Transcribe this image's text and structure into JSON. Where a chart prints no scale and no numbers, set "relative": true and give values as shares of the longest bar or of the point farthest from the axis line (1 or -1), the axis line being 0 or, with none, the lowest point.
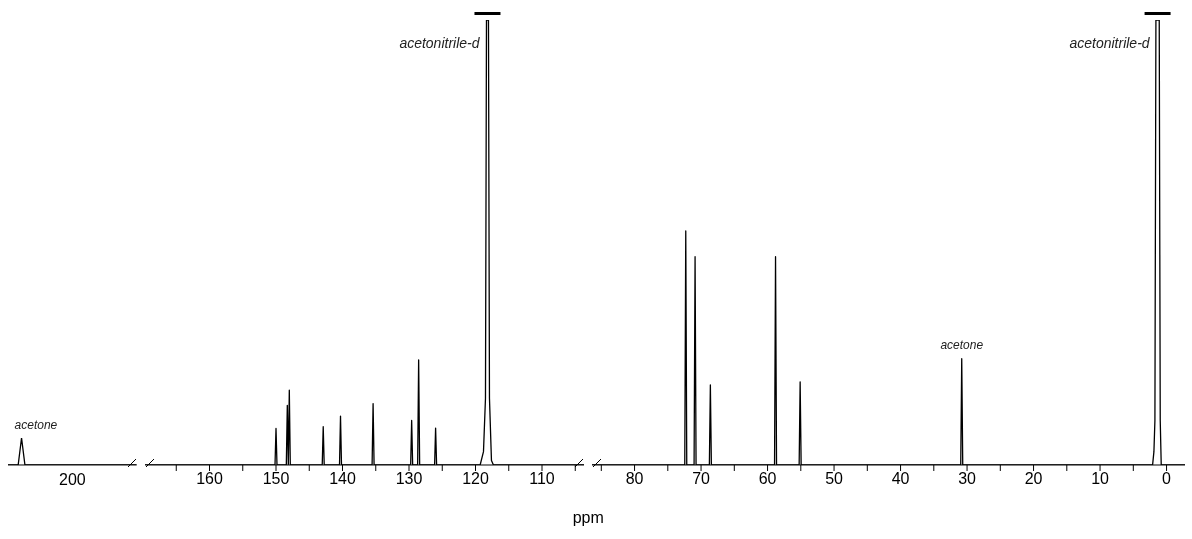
{
  "chart_data": [
    {
      "type": "line",
      "relative": true,
      "categories": [
        null,
        null,
        null,
        null,
        null,
        null,
        null,
        null,
        null,
        null,
        null,
        null,
        null,
        null,
        null,
        null,
        null,
        null,
        null,
        null,
        null,
        null,
        null,
        null,
        null,
        null,
        null,
        null,
        null,
        null,
        null,
        null,
        null,
        null,
        null,
        null,
        null,
        null,
        null
      ],
      "series": [
        {
          "color": "#000000",
          "values": [
            0,
            0,
            0,
            0,
            1,
            0,
            0,
            0,
            0,
            0,
            0,
            0,
            0,
            0,
            0,
            0,
            0,
            0,
            0,
            0,
            0,
            0,
            0,
            0,
            0,
            0,
            0,
            0,
            0,
            0,
            0,
            0,
            0,
            0,
            0,
            0,
            0,
            0,
            0
          ]
        }
      ],
      "annotations": [
        "acetone",
        "200"
      ]
    },
    {
      "type": "line",
      "relative": true,
      "xlabel": "ppm",
      "xlim": [
        169.7,
        103.6
      ],
      "xticks": [
        {
          "value": 165,
          "label": null
        },
        160,
        {
          "value": 155,
          "label": null
        },
        150,
        {
          "value": 145,
          "label": null
        },
        140,
        {
          "value": 135,
          "label": null
        },
        130,
        {
          "value": 125,
          "label": null
        },
        120,
        {
          "value": 115,
          "label": null
        },
        110,
        {
          "value": 105,
          "label": null
        }
      ],
      "x": [
        169.7,
        150.15,
        150.0,
        149.85,
        148.45,
        148.3,
        148.15,
        148.0,
        147.85,
        143.05,
        142.9,
        142.75,
        140.45,
        140.3,
        140.15,
        135.55,
        135.4,
        135.25,
        129.75,
        129.6,
        129.45,
        128.7,
        128.55,
        128.4,
        126.15,
        126.0,
        125.85,
        119.3,
        118.8,
        118.5,
        118.35,
        118.05,
        117.9,
        117.6,
        117.3,
        103.6
      ],
      "series": [
        {
          "color": "#000000",
          "values": [
            0,
            0,
            0.082,
            0,
            0,
            0.134,
            0,
            0.168,
            0,
            0,
            0.086,
            0,
            0,
            0.11,
            0,
            0,
            0.138,
            0,
            0,
            0.1,
            0,
            0,
            0.236,
            0,
            0,
            0.083,
            0,
            0,
            0.03,
            0.15,
            1,
            1,
            0.15,
            0.01,
            0,
            0
          ]
        }
      ],
      "annotations": [
        {
          "text": "acetonitrile-d",
          "x": 118.2,
          "y": 1
        }
      ]
    },
    {
      "type": "line",
      "relative": true,
      "xlim": [
        86.4,
        -2.8
      ],
      "xticks": [
        {
          "value": 85,
          "label": null
        },
        80,
        {
          "value": 75,
          "label": null
        },
        70,
        {
          "value": 65,
          "label": null
        },
        60,
        {
          "value": 55,
          "label": null
        },
        50,
        {
          "value": 45,
          "label": null
        },
        40,
        {
          "value": 35,
          "label": null
        },
        30,
        {
          "value": 25,
          "label": null
        },
        20,
        {
          "value": 15,
          "label": null
        },
        10,
        {
          "value": 5,
          "label": null
        },
        0
      ],
      "x": [
        86.4,
        72.45,
        72.3,
        72.15,
        71.05,
        70.9,
        70.75,
        68.75,
        68.6,
        68.45,
        58.95,
        58.8,
        58.65,
        55.25,
        55.1,
        54.95,
        30.95,
        30.8,
        30.65,
        2.1,
        1.9,
        1.75,
        1.6,
        1.1,
        0.95,
        0.8,
        -2.8
      ],
      "series": [
        {
          "color": "#000000",
          "values": [
            0,
            0,
            0.526,
            0,
            0,
            0.468,
            0,
            0,
            0.18,
            0,
            0,
            0.468,
            0,
            0,
            0.187,
            0,
            0,
            0.239,
            0,
            0,
            0.03,
            0.1,
            1,
            1,
            0.1,
            0,
            0
          ]
        }
      ],
      "annotations": [
        {
          "text": "acetone",
          "x": 30.8,
          "y": 0.239
        },
        {
          "text": "acetonitrile-d",
          "x": 1.35,
          "y": 1
        }
      ]
    }
  ]
}
